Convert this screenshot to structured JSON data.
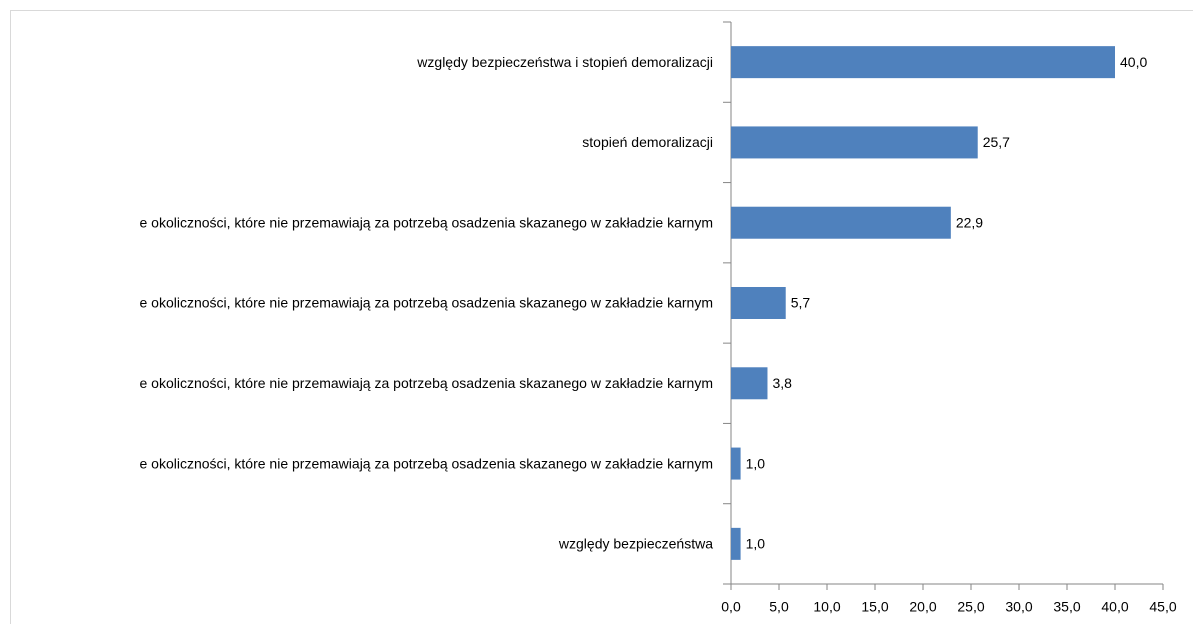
{
  "chart_data": {
    "type": "hbar",
    "categories": [
      "względy bezpieczeństwa i stopień demoralizacji",
      "stopień demoralizacji",
      "e okoliczności, które nie przemawiają za potrzebą osadzenia skazanego w zakładzie karnym",
      "e okoliczności, które nie przemawiają za potrzebą osadzenia skazanego w zakładzie karnym",
      "e okoliczności, które nie przemawiają za potrzebą osadzenia skazanego w zakładzie karnym",
      "e okoliczności, które nie przemawiają za potrzebą osadzenia skazanego w zakładzie karnym",
      "względy bezpieczeństwa"
    ],
    "values": [
      40.0,
      25.7,
      22.9,
      5.7,
      3.8,
      1.0,
      1.0
    ],
    "value_labels": [
      "40,0",
      "25,7",
      "22,9",
      "5,7",
      "3,8",
      "1,0",
      "1,0"
    ],
    "color": "#4f81bd",
    "xlim": [
      0,
      45
    ],
    "xticks": [
      {
        "value": 0,
        "label": "0,0"
      },
      {
        "value": 5,
        "label": "5,0"
      },
      {
        "value": 10,
        "label": "10,0"
      },
      {
        "value": 15,
        "label": "15,0"
      },
      {
        "value": 20,
        "label": "20,0"
      },
      {
        "value": 25,
        "label": "25,0"
      },
      {
        "value": 30,
        "label": "30,0"
      },
      {
        "value": 35,
        "label": "35,0"
      },
      {
        "value": 40,
        "label": "40,0"
      },
      {
        "value": 45,
        "label": "45,0"
      }
    ]
  }
}
